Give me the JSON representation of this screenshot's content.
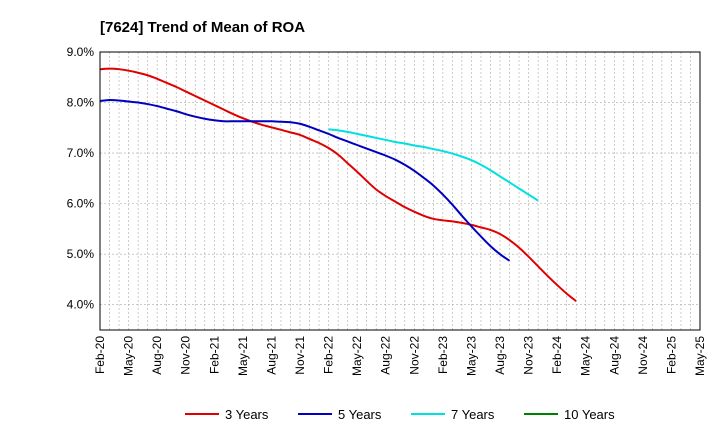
{
  "chart_data": {
    "type": "line",
    "title": "[7624]  Trend of Mean of ROA",
    "xlabel": "",
    "ylabel": "",
    "x_ticks": [
      "Feb-20",
      "May-20",
      "Aug-20",
      "Nov-20",
      "Feb-21",
      "May-21",
      "Aug-21",
      "Nov-21",
      "Feb-22",
      "May-22",
      "Aug-22",
      "Nov-22",
      "Feb-23",
      "May-23",
      "Aug-23",
      "Nov-23",
      "Feb-24",
      "May-24",
      "Aug-24",
      "Nov-24",
      "Feb-25",
      "May-25"
    ],
    "y_ticks": [
      "4.0%",
      "5.0%",
      "6.0%",
      "7.0%",
      "8.0%",
      "9.0%"
    ],
    "y_tick_values": [
      4.0,
      5.0,
      6.0,
      7.0,
      8.0,
      9.0
    ],
    "ylim": [
      3.5,
      9.0
    ],
    "grid": true,
    "legend_position": "bottom",
    "series": [
      {
        "name": "3 Years",
        "color": "#e00000",
        "start_index": 0,
        "values": [
          8.66,
          8.67,
          8.66,
          8.63,
          8.59,
          8.54,
          8.47,
          8.39,
          8.31,
          8.22,
          8.13,
          8.04,
          7.95,
          7.86,
          7.77,
          7.69,
          7.62,
          7.56,
          7.51,
          7.46,
          7.41,
          7.36,
          7.28,
          7.2,
          7.1,
          6.97,
          6.8,
          6.63,
          6.45,
          6.28,
          6.15,
          6.04,
          5.93,
          5.84,
          5.76,
          5.7,
          5.67,
          5.65,
          5.62,
          5.58,
          5.53,
          5.48,
          5.4,
          5.28,
          5.13,
          4.95,
          4.76,
          4.57,
          4.39,
          4.22,
          4.07
        ]
      },
      {
        "name": "5 Years",
        "color": "#0000c0",
        "start_index": 0,
        "values": [
          8.03,
          8.05,
          8.04,
          8.02,
          8.0,
          7.97,
          7.93,
          7.88,
          7.83,
          7.77,
          7.72,
          7.68,
          7.65,
          7.63,
          7.63,
          7.63,
          7.63,
          7.63,
          7.63,
          7.62,
          7.61,
          7.58,
          7.52,
          7.45,
          7.38,
          7.3,
          7.23,
          7.16,
          7.09,
          7.02,
          6.95,
          6.87,
          6.77,
          6.65,
          6.51,
          6.36,
          6.18,
          5.98,
          5.76,
          5.55,
          5.35,
          5.16,
          5.0,
          4.87
        ]
      },
      {
        "name": "7 Years",
        "color": "#00e0e0",
        "start_index": 24,
        "values": [
          7.47,
          7.45,
          7.42,
          7.38,
          7.34,
          7.3,
          7.26,
          7.22,
          7.19,
          7.15,
          7.12,
          7.08,
          7.04,
          6.99,
          6.93,
          6.86,
          6.77,
          6.66,
          6.54,
          6.42,
          6.3,
          6.18,
          6.06
        ]
      },
      {
        "name": "10 Years",
        "color": "#008000",
        "start_index": 0,
        "values": []
      }
    ]
  }
}
